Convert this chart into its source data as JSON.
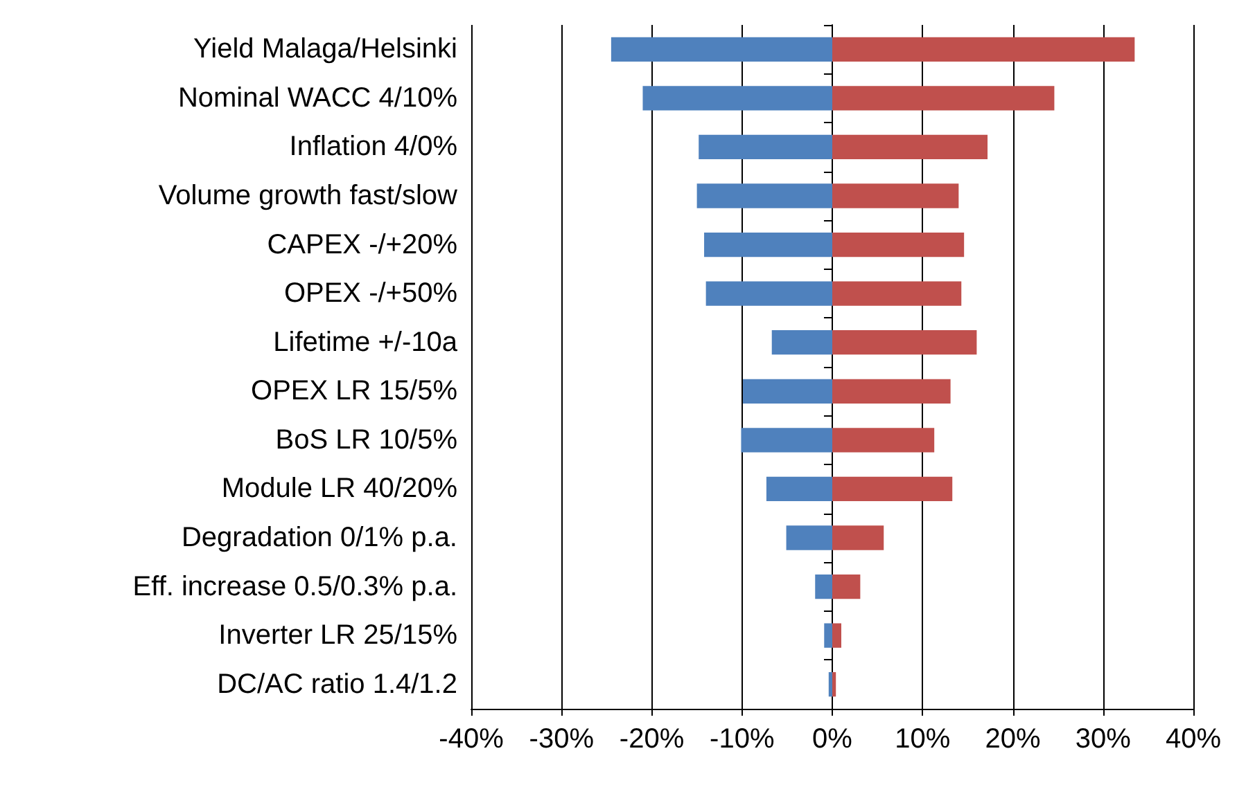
{
  "chart_data": {
    "type": "bar",
    "orientation": "horizontal",
    "categories": [
      "Yield Malaga/Helsinki",
      "Nominal WACC 4/10%",
      "Inflation 4/0%",
      "Volume growth fast/slow",
      "CAPEX -/+20%",
      "OPEX -/+50%",
      "Lifetime +/-10a",
      "OPEX LR 15/5%",
      "BoS LR 10/5%",
      "Module LR 40/20%",
      "Degradation 0/1% p.a.",
      "Eff. increase 0.5/0.3% p.a.",
      "Inverter LR 25/15%",
      "DC/AC ratio 1.4/1.2"
    ],
    "series": [
      {
        "color": "#4f81bd",
        "values": [
          -24.5,
          -21,
          -14.8,
          -15,
          -14.2,
          -14,
          -6.7,
          -9.9,
          -10.1,
          -7.3,
          -5.1,
          -1.9,
          -0.9,
          -0.4
        ]
      },
      {
        "color": "#c0504d",
        "values": [
          33.5,
          24.6,
          17.2,
          14,
          14.6,
          14.3,
          16,
          13.1,
          11.3,
          13.3,
          5.7,
          3.1,
          1,
          0.4
        ]
      }
    ],
    "xlim": [
      -40,
      40
    ],
    "xticks": [
      {
        "value": -40,
        "label": "-40%"
      },
      {
        "value": -30,
        "label": "-30%"
      },
      {
        "value": -20,
        "label": "-20%"
      },
      {
        "value": -10,
        "label": "-10%"
      },
      {
        "value": 0,
        "label": "0%"
      },
      {
        "value": 10,
        "label": "10%"
      },
      {
        "value": 20,
        "label": "20%"
      },
      {
        "value": 30,
        "label": "30%"
      },
      {
        "value": 40,
        "label": "40%"
      }
    ],
    "grid": "x",
    "stacked": true
  }
}
